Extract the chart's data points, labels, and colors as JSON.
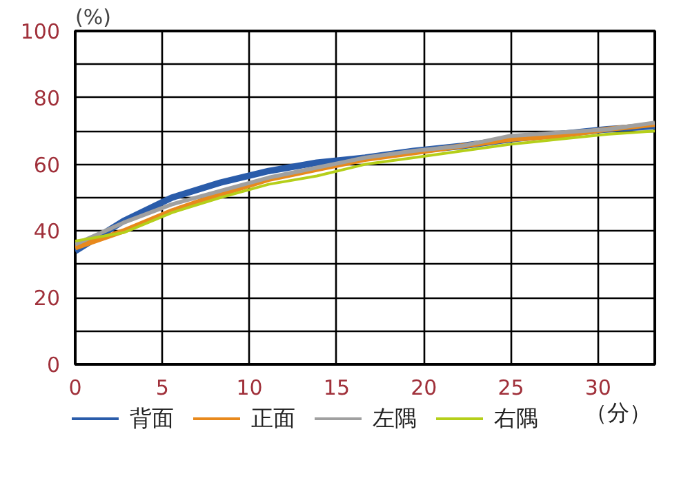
{
  "chart_data": {
    "type": "line",
    "xlabel": "（分）",
    "ylabel": "(%)",
    "x": [
      0,
      2.77,
      5.54,
      8.31,
      11.09,
      13.86,
      16.63,
      19.4,
      22.17,
      24.94,
      27.7,
      30.5,
      33.25
    ],
    "series": [
      {
        "name": "背面",
        "color": "#2a5caa",
        "values": [
          34,
          43,
          50,
          54.5,
          58,
          60.5,
          62,
          64,
          65.5,
          67.5,
          69,
          70.5,
          71.5
        ]
      },
      {
        "name": "正面",
        "color": "#e8891c",
        "values": [
          35,
          40,
          46,
          51,
          55.5,
          58.5,
          61.5,
          63.5,
          65.5,
          67.5,
          68.5,
          70.5,
          72
        ]
      },
      {
        "name": "左隅",
        "color": "#a0a0a0",
        "values": [
          36,
          42.5,
          48,
          52,
          56,
          59,
          62,
          64,
          65.5,
          68.5,
          69.5,
          70.5,
          72.5
        ]
      },
      {
        "name": "右隅",
        "color": "#b5cf1a",
        "values": [
          37,
          39.5,
          45.5,
          50,
          54,
          56.5,
          60,
          62,
          64,
          66,
          67.5,
          69,
          70
        ]
      }
    ],
    "xlim": [
      0,
      33.25
    ],
    "xticks": [
      0,
      5,
      10,
      15,
      20,
      25,
      30
    ],
    "ylim": [
      0,
      100
    ],
    "yticks": [
      0,
      {
        "value": 10,
        "label": null
      },
      20,
      {
        "value": 30,
        "label": null
      },
      40,
      {
        "value": 50,
        "label": null
      },
      60,
      {
        "value": 70,
        "label": null
      },
      80,
      {
        "value": 90,
        "label": null
      },
      100
    ],
    "grid": true,
    "legend": "bottom",
    "marker": "none",
    "line_style": "solid"
  }
}
